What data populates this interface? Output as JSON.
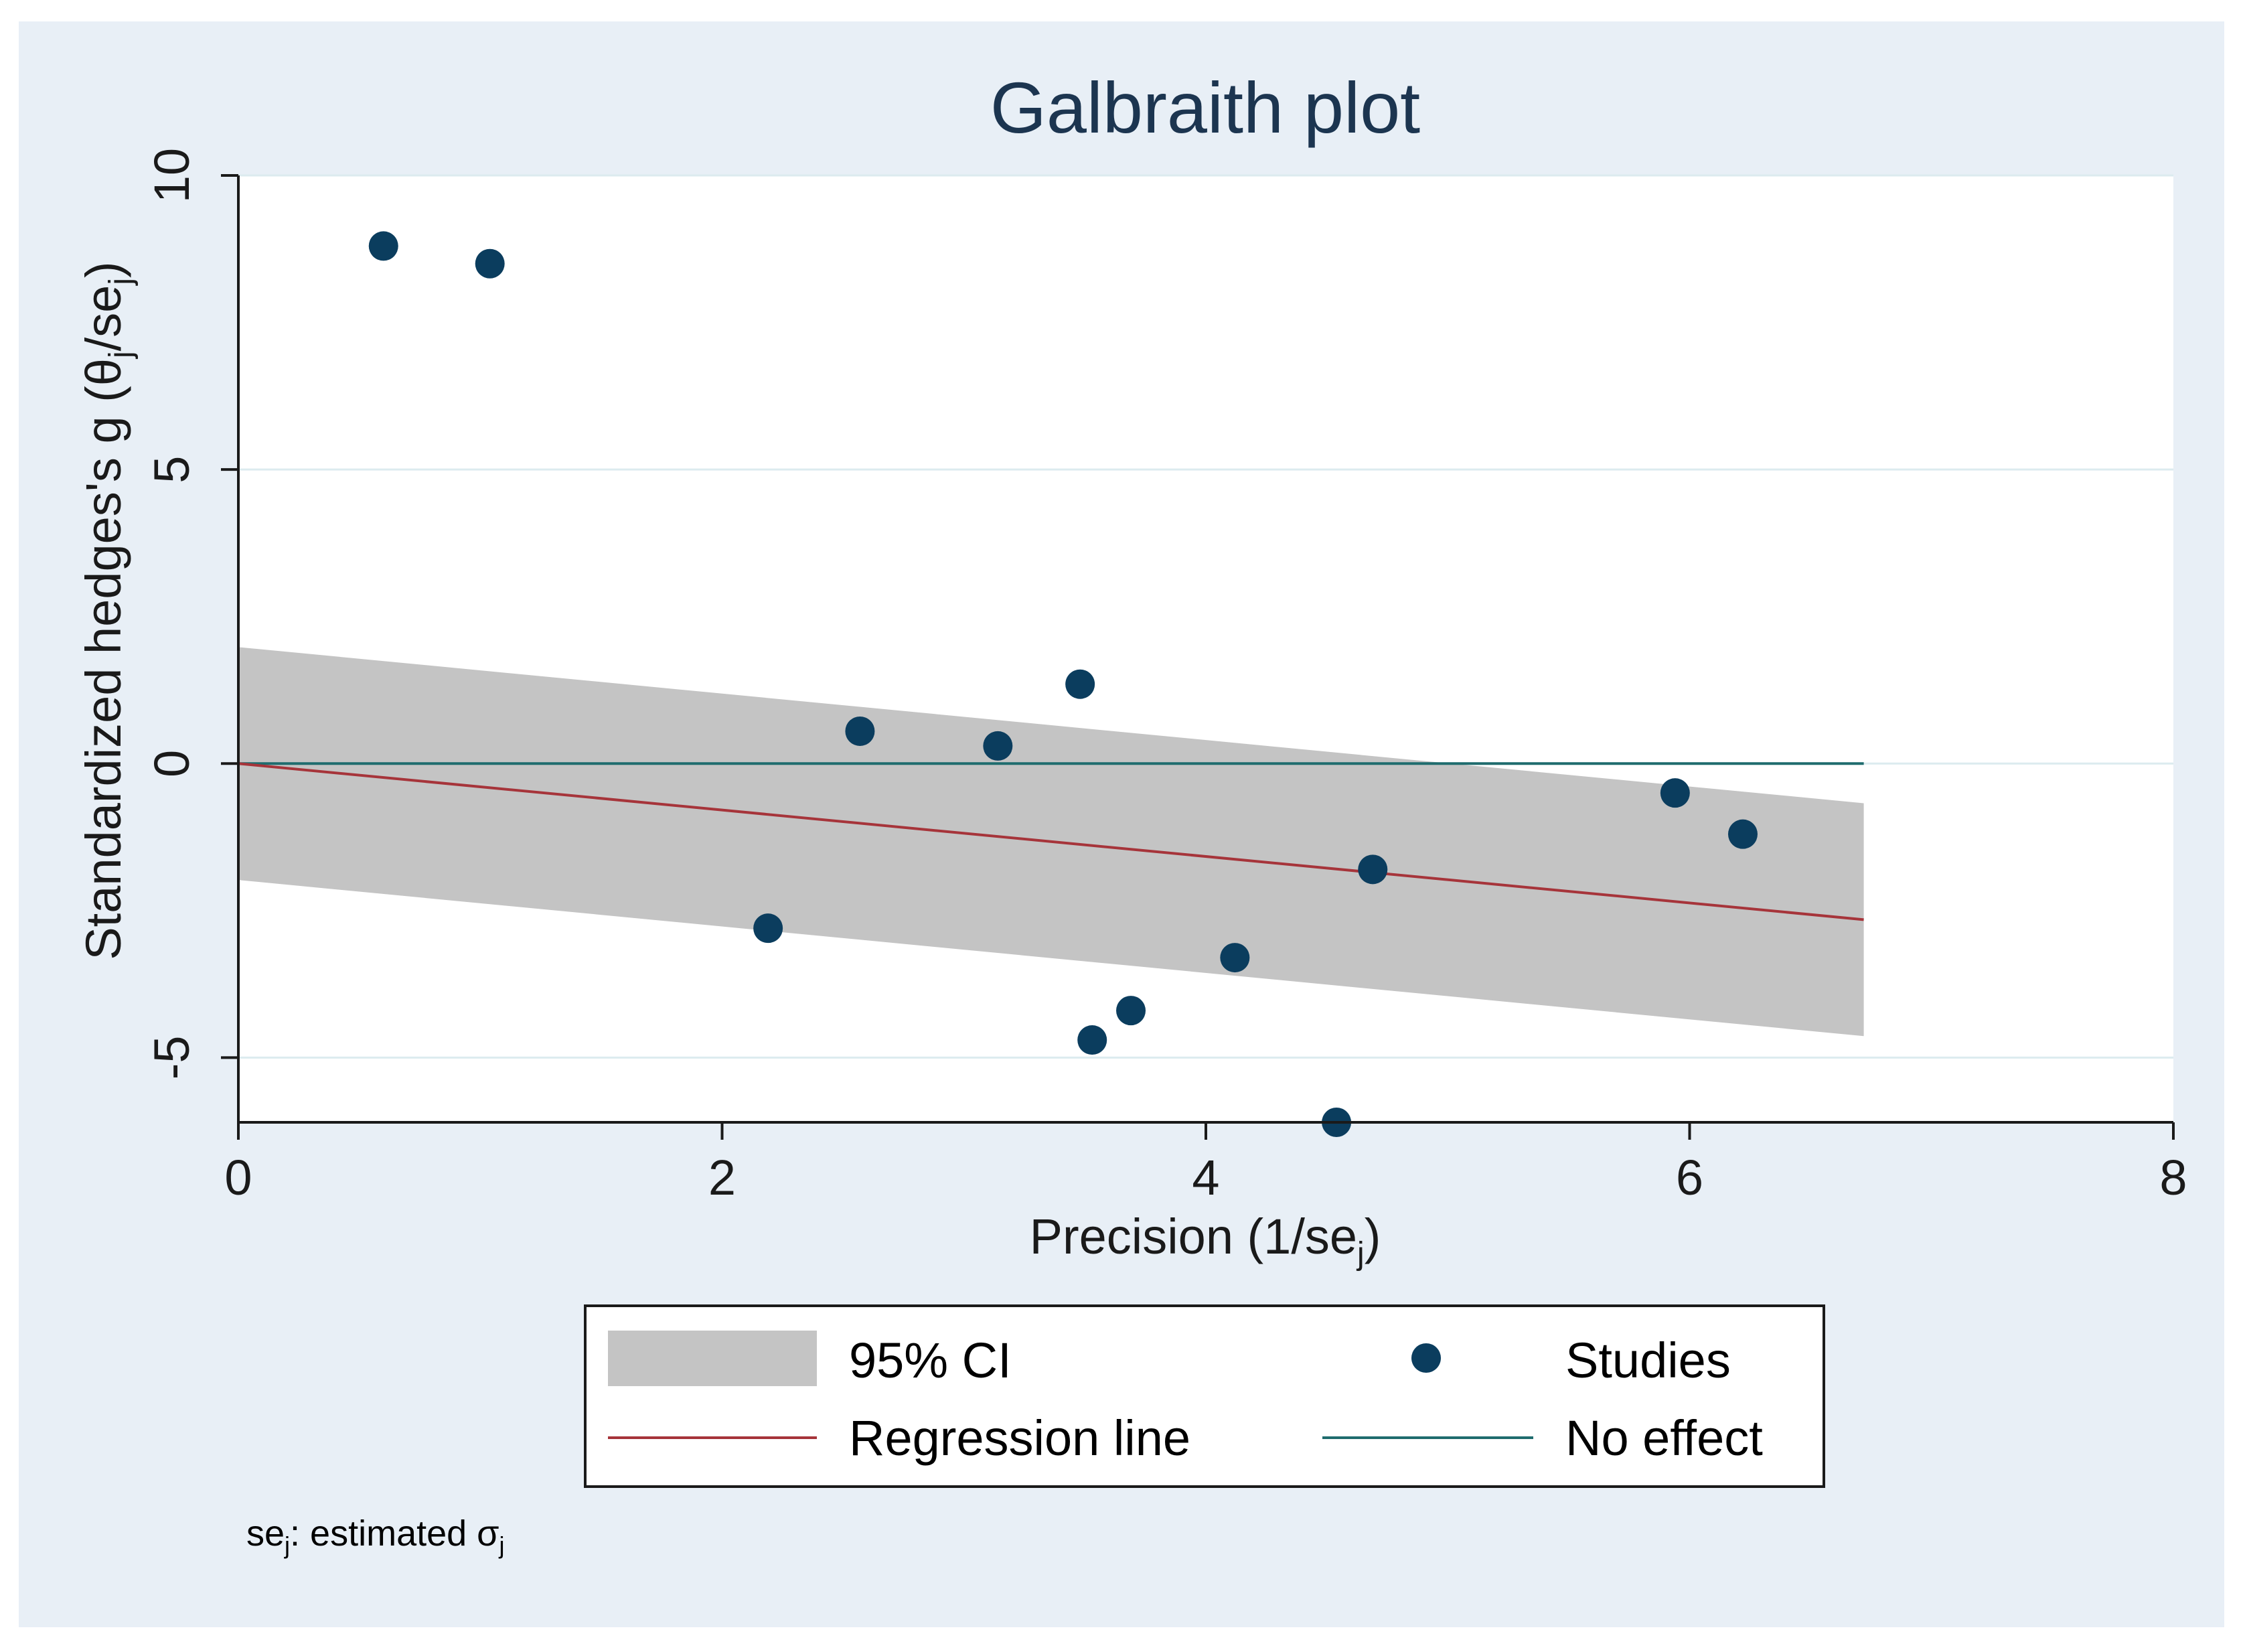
{
  "chart_data": {
    "type": "scatter",
    "title": "Galbraith plot",
    "xlabel": {
      "main": "Precision (1/se",
      "sub": "j",
      "tail": ")"
    },
    "ylabel": {
      "main": "Standardized hedges's g (θ",
      "sub1": "j",
      "mid": "/se",
      "sub2": "j",
      "tail": ")"
    },
    "xlim": [
      0,
      8
    ],
    "ylim": [
      -6.1,
      10
    ],
    "xticks": [
      0,
      2,
      4,
      6,
      8
    ],
    "xtick_labels": [
      "0",
      "2",
      "4",
      "6",
      "8"
    ],
    "yticks": [
      -5,
      0,
      5,
      10
    ],
    "ytick_labels": [
      "-5",
      "0",
      "5",
      "10"
    ],
    "grid": "horizontal",
    "note": {
      "pre": "se",
      "sub1": "j",
      "mid": ": estimated σ",
      "sub2": "j"
    },
    "studies": {
      "name": "Studies",
      "x": [
        0.6,
        1.04,
        2.19,
        2.57,
        3.14,
        3.48,
        3.53,
        3.69,
        4.12,
        4.54,
        4.69,
        5.94,
        6.22
      ],
      "y": [
        8.8,
        8.5,
        -2.8,
        0.55,
        0.3,
        1.35,
        -4.7,
        -4.2,
        -3.3,
        -6.1,
        -1.8,
        -0.5,
        -1.2
      ]
    },
    "regression_line": {
      "name": "Regression line",
      "intercept": 0.0,
      "slope": -0.395,
      "x_range": [
        0,
        6.72
      ]
    },
    "ci_band": {
      "name": "95% CI",
      "lower_offset": -1.98,
      "upper_offset": 1.98,
      "x_range": [
        0,
        6.72
      ]
    },
    "no_effect": {
      "name": "No effect",
      "y": 0,
      "x_range": [
        0,
        6.72
      ]
    },
    "legend": {
      "position": "bottom-center",
      "items": [
        {
          "key": "ci",
          "label": "95% CI"
        },
        {
          "key": "studies",
          "label": "Studies"
        },
        {
          "key": "regression",
          "label": "Regression line"
        },
        {
          "key": "noeffect",
          "label": "No effect"
        }
      ]
    },
    "colors": {
      "background": "#e8eff6",
      "plot_background": "#ffffff",
      "grid": "#dcebef",
      "points": "#0b3d5e",
      "ci_band": "#c4c4c4",
      "regression": "#a6343a",
      "no_effect": "#1f6c6e",
      "text": "#1a1a1a",
      "title": "#1c3550"
    }
  }
}
